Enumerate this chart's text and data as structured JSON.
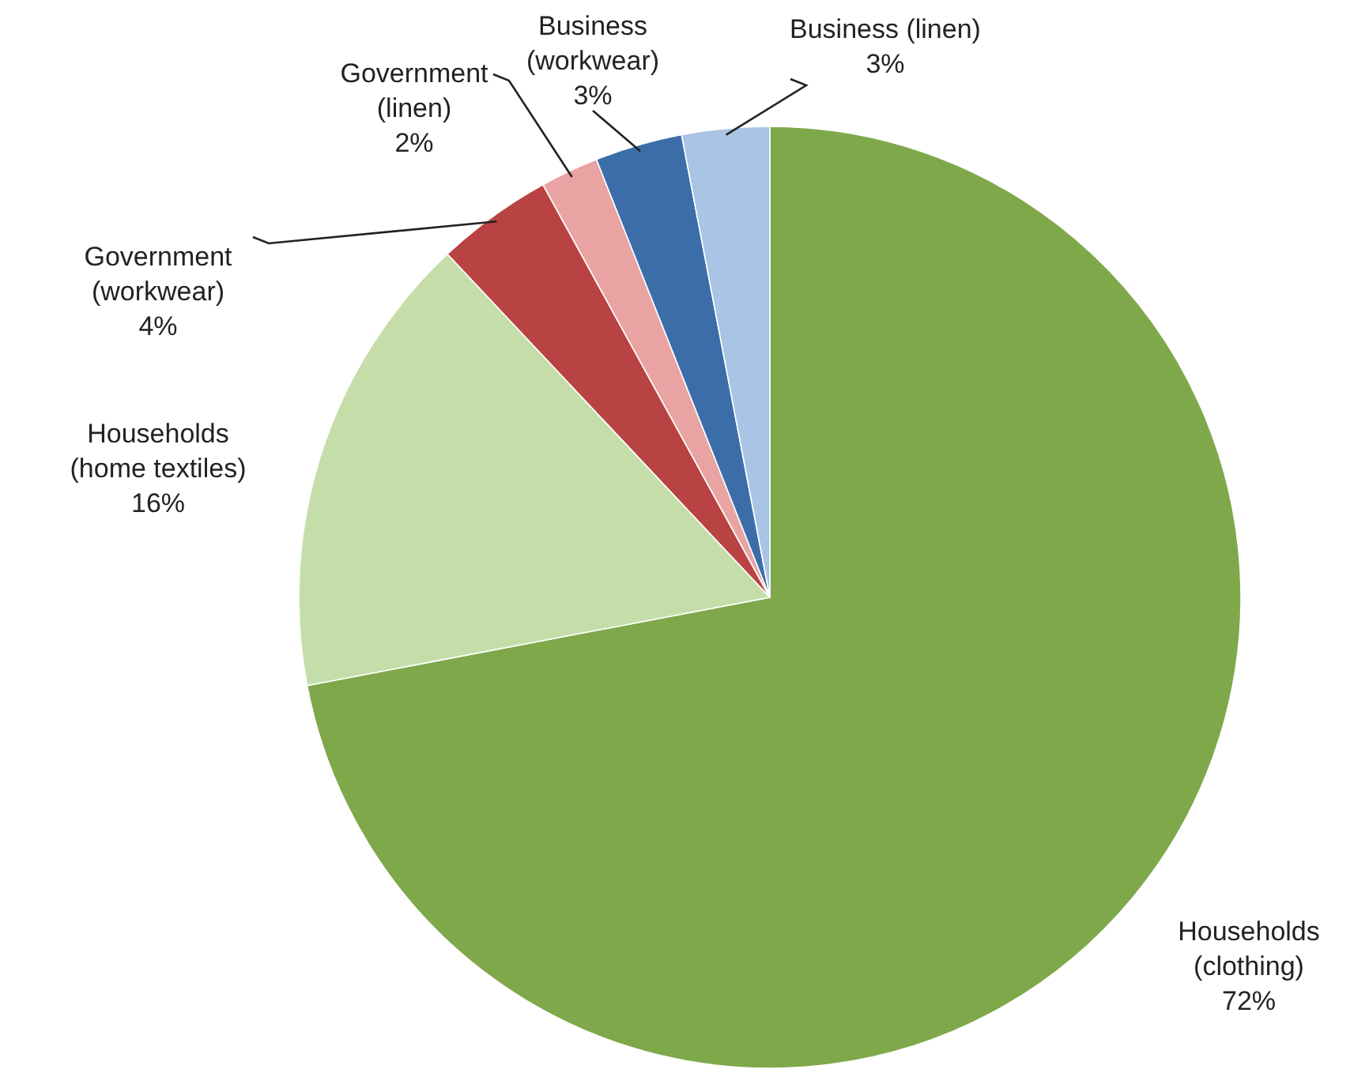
{
  "chart_data": {
    "type": "pie",
    "categories": [
      "Households\n(clothing)",
      "Households\n(home textiles)",
      "Government\n(workwear)",
      "Government\n(linen)",
      "Business\n(workwear)",
      "Business (linen)"
    ],
    "values": [
      72,
      16,
      4,
      2,
      3,
      3
    ],
    "colors": [
      "#7fa84b",
      "#c5dea9",
      "#b94343",
      "#e9a3a3",
      "#3b6ea9",
      "#a9c4e4"
    ],
    "value_labels": [
      "72%",
      "16%",
      "4%",
      "2%",
      "3%",
      "3%"
    ]
  }
}
